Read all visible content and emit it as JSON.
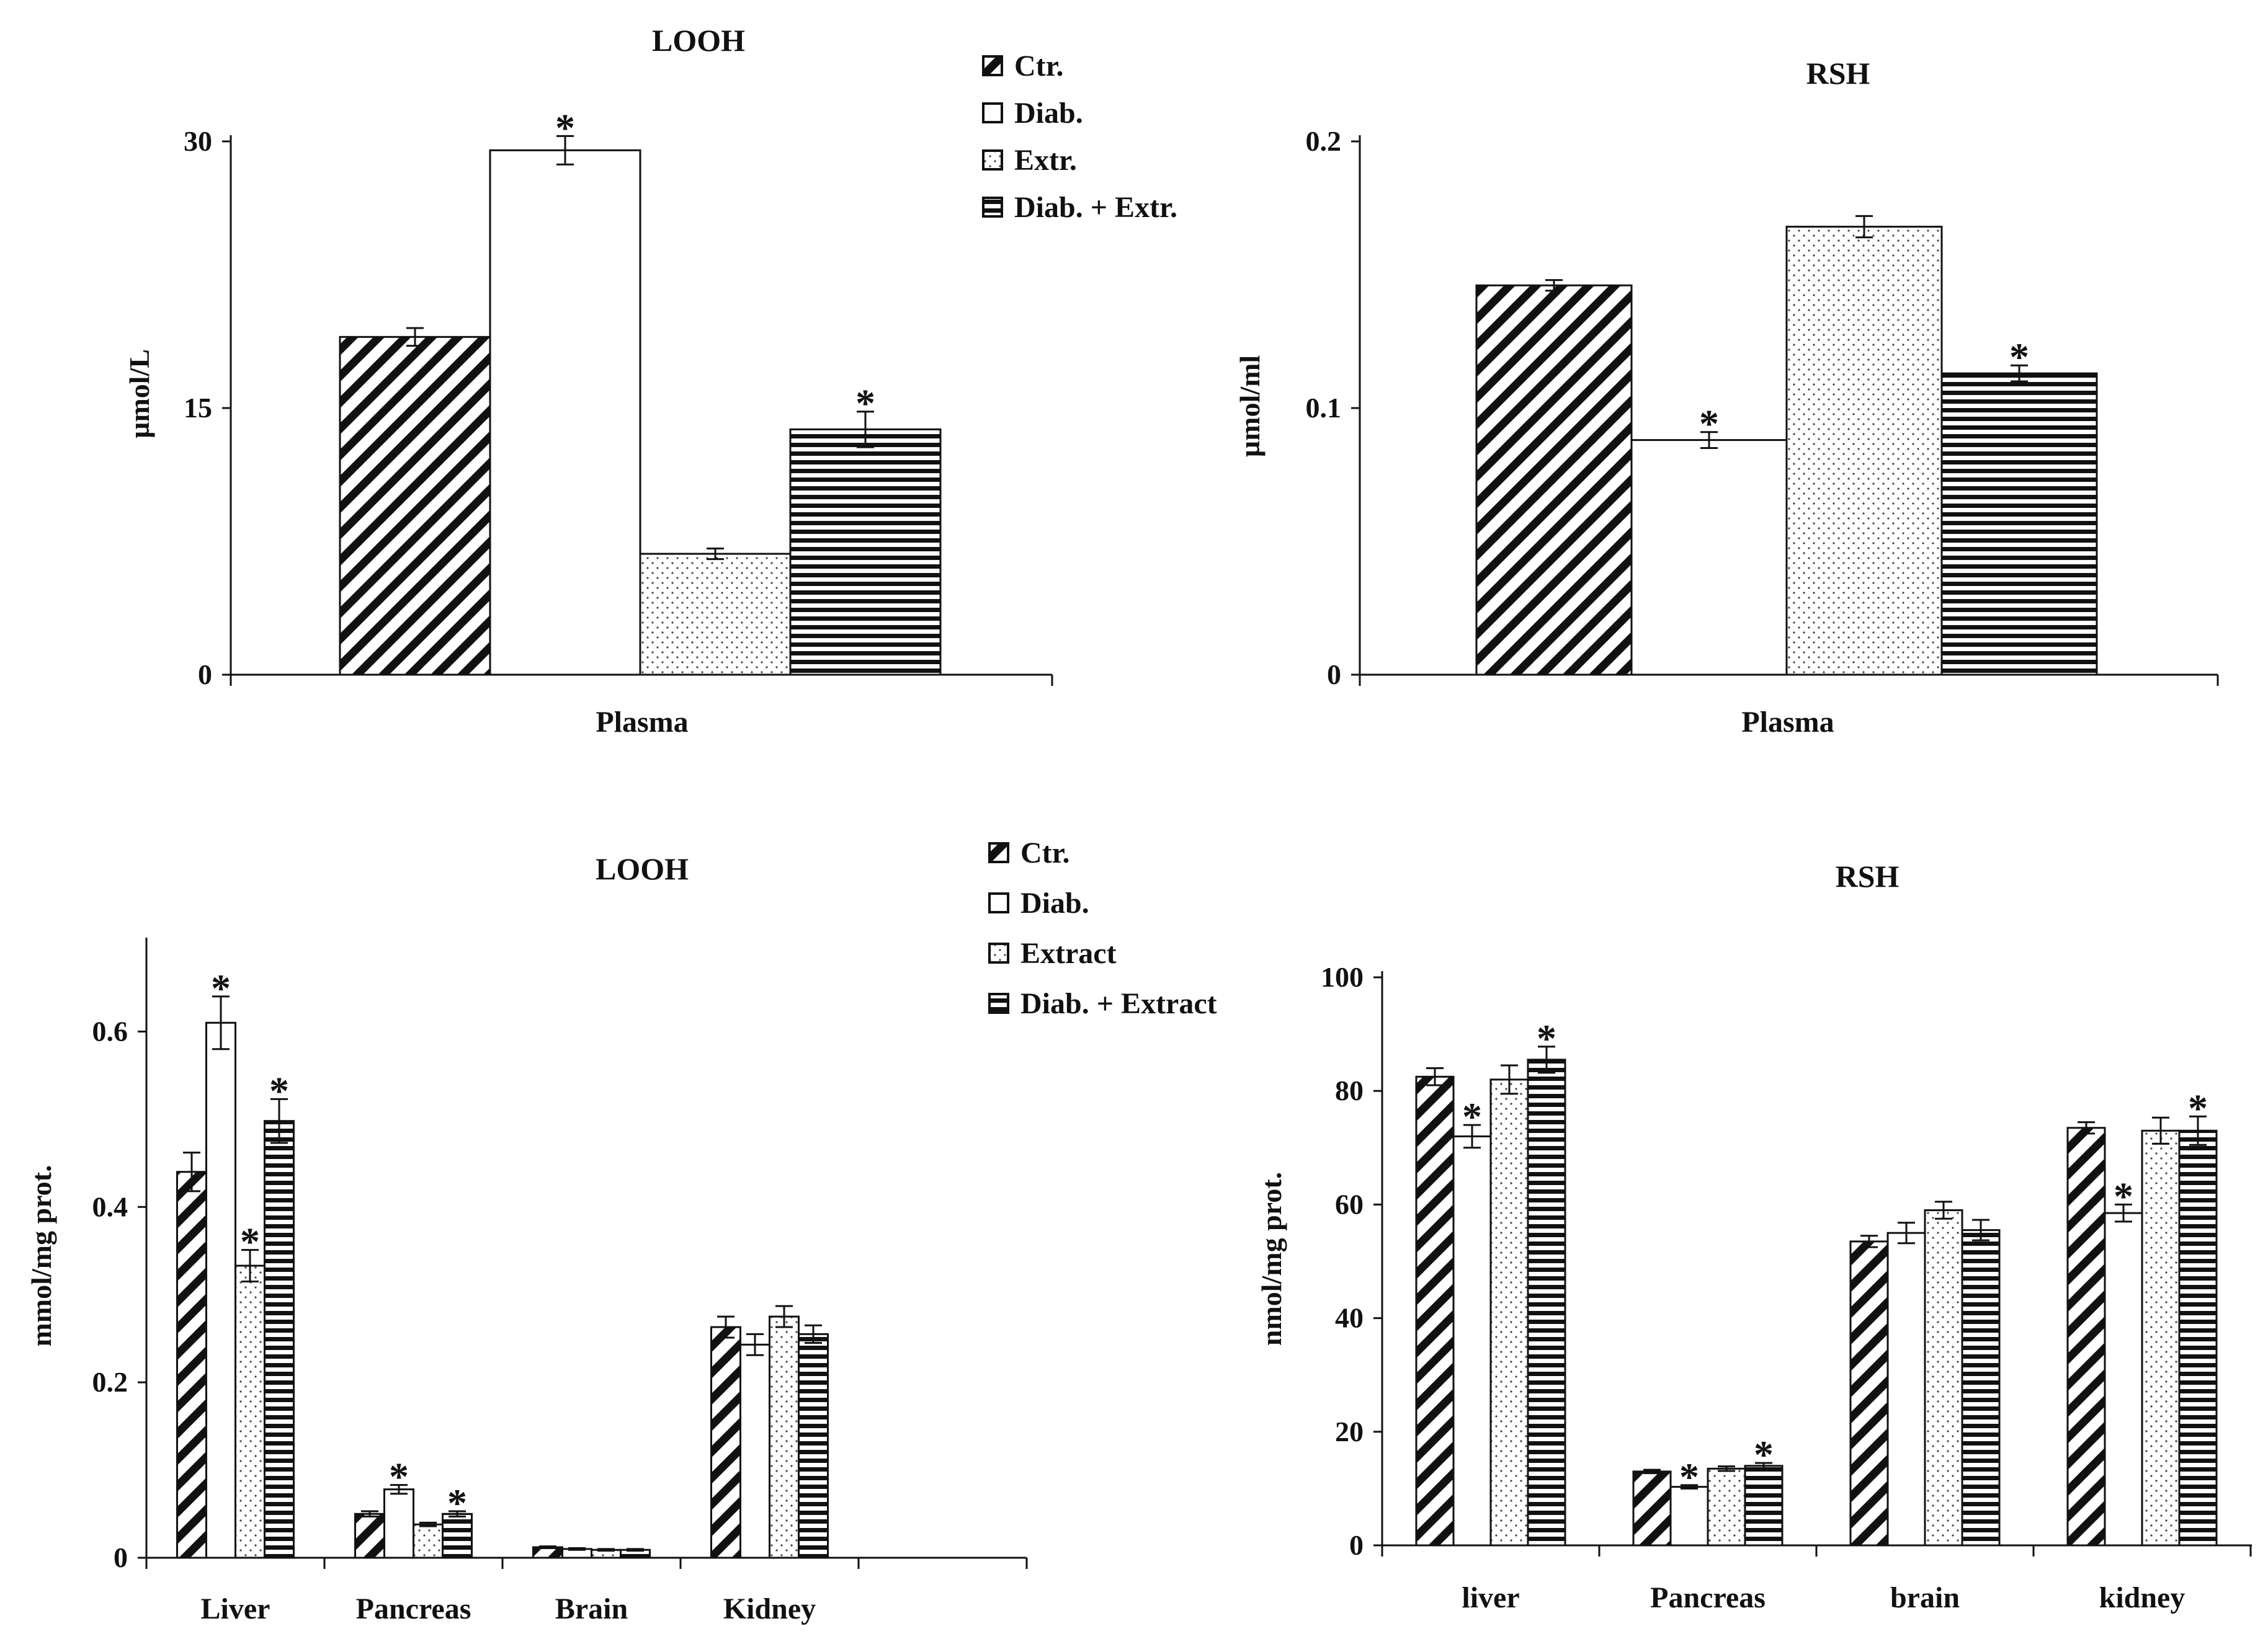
{
  "colors": {
    "axis": "#111111",
    "bar_stroke": "#111111",
    "background": "#ffffff"
  },
  "legend_top": [
    "Ctr.",
    "Diab.",
    "Extr.",
    "Diab. + Extr."
  ],
  "legend_bottom": [
    "Ctr.",
    "Diab.",
    "Extract",
    "Diab. + Extract"
  ],
  "chart_data": [
    {
      "type": "bar",
      "title": "LOOH",
      "ylabel": "µmol/L",
      "xlabel": "",
      "ylim": [
        0,
        30
      ],
      "yticks": [
        0,
        15,
        30
      ],
      "categories": [
        "Plasma"
      ],
      "series": [
        {
          "name": "Ctr.",
          "pattern": "diagonal",
          "values": [
            19.0
          ],
          "errors": [
            0.5
          ],
          "significant": [
            false
          ]
        },
        {
          "name": "Diab.",
          "pattern": "none",
          "values": [
            29.5
          ],
          "errors": [
            0.8
          ],
          "significant": [
            true
          ]
        },
        {
          "name": "Extr.",
          "pattern": "dots",
          "values": [
            6.8
          ],
          "errors": [
            0.3
          ],
          "significant": [
            false
          ]
        },
        {
          "name": "Diab. + Extr.",
          "pattern": "horizontal",
          "values": [
            13.8
          ],
          "errors": [
            1.0
          ],
          "significant": [
            true
          ]
        }
      ]
    },
    {
      "type": "bar",
      "title": "RSH",
      "ylabel": "µmol/ml",
      "xlabel": "",
      "ylim": [
        0,
        0.2
      ],
      "yticks": [
        0,
        0.1,
        0.2
      ],
      "categories": [
        "Plasma"
      ],
      "series": [
        {
          "name": "Ctr.",
          "pattern": "diagonal",
          "values": [
            0.146
          ],
          "errors": [
            0.002
          ],
          "significant": [
            false
          ]
        },
        {
          "name": "Diab.",
          "pattern": "none",
          "values": [
            0.088
          ],
          "errors": [
            0.003
          ],
          "significant": [
            true
          ]
        },
        {
          "name": "Extr.",
          "pattern": "dots",
          "values": [
            0.168
          ],
          "errors": [
            0.004
          ],
          "significant": [
            false
          ]
        },
        {
          "name": "Diab. + Extr.",
          "pattern": "horizontal",
          "values": [
            0.113
          ],
          "errors": [
            0.003
          ],
          "significant": [
            true
          ]
        }
      ]
    },
    {
      "type": "bar",
      "title": "LOOH",
      "ylabel": "mmol/mg prot.",
      "xlabel": "",
      "ylim": [
        0,
        0.7
      ],
      "yticks": [
        0,
        0.2,
        0.4,
        0.6
      ],
      "categories": [
        "Liver",
        "Pancreas",
        "Brain",
        "Kidney",
        ""
      ],
      "series": [
        {
          "name": "Ctr.",
          "pattern": "diagonal",
          "values": [
            0.44,
            0.05,
            0.012,
            0.263,
            null
          ],
          "errors": [
            0.022,
            0.003,
            0.001,
            0.012,
            null
          ],
          "significant": [
            false,
            false,
            false,
            false,
            false
          ]
        },
        {
          "name": "Diab.",
          "pattern": "none",
          "values": [
            0.61,
            0.078,
            0.01,
            0.243,
            null
          ],
          "errors": [
            0.03,
            0.005,
            0.001,
            0.012,
            null
          ],
          "significant": [
            true,
            true,
            false,
            false,
            false
          ]
        },
        {
          "name": "Extract",
          "pattern": "dots",
          "values": [
            0.333,
            0.038,
            0.009,
            0.275,
            null
          ],
          "errors": [
            0.018,
            0.002,
            0.001,
            0.012,
            null
          ],
          "significant": [
            true,
            false,
            false,
            false,
            false
          ]
        },
        {
          "name": "Diab. + Extract",
          "pattern": "horizontal",
          "values": [
            0.498,
            0.05,
            0.009,
            0.255,
            null
          ],
          "errors": [
            0.025,
            0.003,
            0.001,
            0.01,
            null
          ],
          "significant": [
            true,
            true,
            false,
            false,
            false
          ]
        }
      ]
    },
    {
      "type": "bar",
      "title": "RSH",
      "ylabel": "nmol/mg prot.",
      "xlabel": "",
      "ylim": [
        0,
        100
      ],
      "yticks": [
        0,
        20,
        40,
        60,
        80,
        100
      ],
      "categories": [
        "liver",
        "Pancreas",
        "brain",
        "kidney"
      ],
      "series": [
        {
          "name": "Ctr.",
          "pattern": "diagonal",
          "values": [
            82.5,
            13.0,
            53.5,
            73.5
          ],
          "errors": [
            1.5,
            0.3,
            1.0,
            1.0
          ],
          "significant": [
            false,
            false,
            false,
            false
          ]
        },
        {
          "name": "Diab.",
          "pattern": "none",
          "values": [
            72.0,
            10.3,
            55.0,
            58.5
          ],
          "errors": [
            2.0,
            0.3,
            1.8,
            1.5
          ],
          "significant": [
            true,
            true,
            false,
            true
          ]
        },
        {
          "name": "Extract",
          "pattern": "dots",
          "values": [
            82.0,
            13.5,
            59.0,
            73.0
          ],
          "errors": [
            2.5,
            0.4,
            1.5,
            2.3
          ],
          "significant": [
            false,
            false,
            false,
            false
          ]
        },
        {
          "name": "Diab. + Extract",
          "pattern": "horizontal",
          "values": [
            85.5,
            14.0,
            55.5,
            73.0
          ],
          "errors": [
            2.3,
            0.5,
            1.8,
            2.5
          ],
          "significant": [
            true,
            true,
            false,
            true
          ]
        }
      ]
    }
  ]
}
